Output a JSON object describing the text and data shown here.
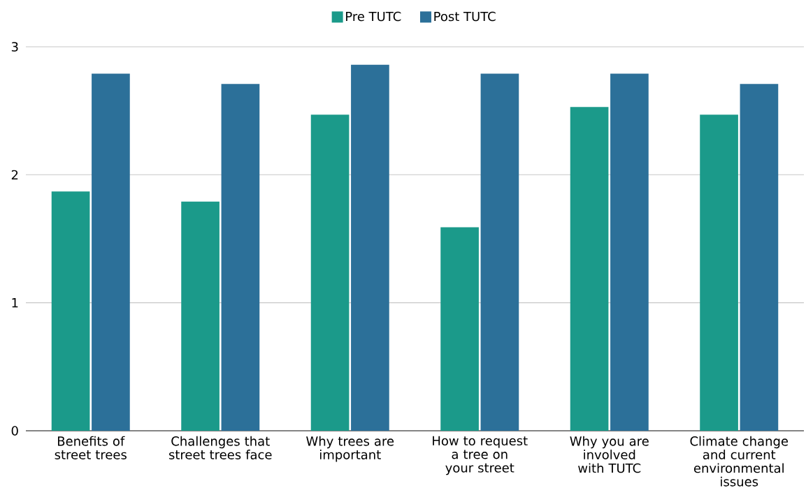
{
  "chart_data": {
    "type": "bar",
    "categories": [
      "Benefits of street trees",
      "Challenges that street trees face",
      "Why trees are important",
      "How to request a tree on your street",
      "Why you are involved with TUTC",
      "Climate change and current environmental issues"
    ],
    "series": [
      {
        "name": "Pre TUTC",
        "color": "#1b9a8a",
        "values": [
          1.87,
          1.79,
          2.47,
          1.59,
          2.53,
          2.47
        ]
      },
      {
        "name": "Post TUTC",
        "color": "#2c7099",
        "values": [
          2.79,
          2.71,
          2.86,
          2.79,
          2.79,
          2.71
        ]
      }
    ],
    "ylim": [
      0,
      3
    ],
    "yticks": [
      0,
      1,
      2,
      3
    ],
    "grid": "y",
    "legend": "top"
  }
}
